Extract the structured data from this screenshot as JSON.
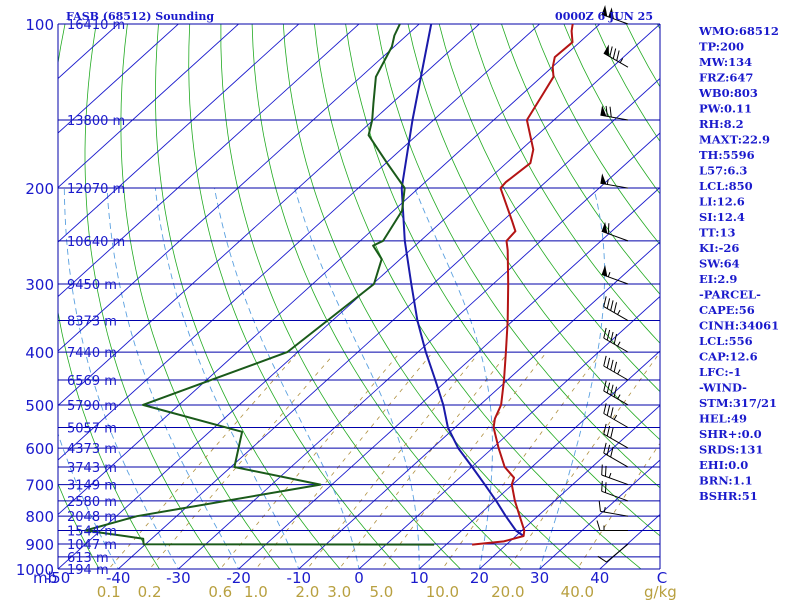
{
  "header": {
    "station_title": "FASB (68512) Sounding",
    "valid_time": "0000Z  6 JUN 25"
  },
  "indices": [
    "WMO:68512",
    "TP:200",
    "MW:134",
    "FRZ:647",
    "WB0:803",
    "PW:0.11",
    "RH:8.2",
    "MAXT:22.9",
    "TH:5596",
    "L57:6.3",
    "LCL:850",
    "LI:12.6",
    "SI:12.4",
    "TT:13",
    "KI:-26",
    "SW:64",
    "EI:2.9",
    "-PARCEL-",
    "CAPE:56",
    "CINH:34061",
    "LCL:556",
    "CAP:12.6",
    "LFC:-1",
    "-WIND-",
    "STM:317/21",
    "HEL:49",
    "SHR+:0.0",
    "SRDS:131",
    "EHI:0.0",
    "BRN:1.1",
    "BSHR:51"
  ],
  "colors": {
    "isobar": "#0000aa",
    "isotherm": "#1a1acc",
    "dry_adiabat": "#22aa22",
    "moist_adiabat": "#5aa0e0",
    "mixing_ratio": "#b09040",
    "temperature": "#b41414",
    "dewpoint": "#1a5a1a",
    "parcel": "#1a1aaa",
    "wind_barb": "#000000",
    "label": "#1a1acc",
    "mixing_label": "#b8a040"
  },
  "chart_data": {
    "type": "skew-t log-p sounding",
    "pressure_axis": {
      "unit": "mb",
      "range": [
        1000,
        100
      ],
      "scale": "log",
      "ticks": [
        100,
        200,
        300,
        400,
        500,
        600,
        700,
        800,
        900,
        1000
      ]
    },
    "temperature_axis": {
      "unit": "C",
      "range": [
        -50,
        50
      ],
      "ticks": [
        -50,
        -40,
        -30,
        -20,
        -10,
        0,
        10,
        20,
        30,
        40
      ],
      "tick_labels": [
        "-50",
        "-40",
        "-30",
        "-20",
        "-10",
        "0",
        "10",
        "20",
        "30",
        "40",
        "C"
      ],
      "unit_label_left": "mb"
    },
    "height_labels": [
      {
        "p": 100,
        "label": "16410 m"
      },
      {
        "p": 150,
        "label": "13800 m"
      },
      {
        "p": 200,
        "label": "12070 m"
      },
      {
        "p": 250,
        "label": "10640 m"
      },
      {
        "p": 300,
        "label": "9450 m"
      },
      {
        "p": 350,
        "label": "8373 m"
      },
      {
        "p": 400,
        "label": "7440 m"
      },
      {
        "p": 450,
        "label": "6569 m"
      },
      {
        "p": 500,
        "label": "5790 m"
      },
      {
        "p": 550,
        "label": "5057 m"
      },
      {
        "p": 600,
        "label": "4373 m"
      },
      {
        "p": 650,
        "label": "3743 m"
      },
      {
        "p": 700,
        "label": "3149 m"
      },
      {
        "p": 750,
        "label": "2580 m"
      },
      {
        "p": 800,
        "label": "2048 m"
      },
      {
        "p": 850,
        "label": "1544 m"
      },
      {
        "p": 900,
        "label": "1047 m"
      },
      {
        "p": 950,
        "label": "613 m"
      },
      {
        "p": 1000,
        "label": "194 m"
      }
    ],
    "mixing_ratio_labels": [
      {
        "w": 0.1,
        "label": "0.1"
      },
      {
        "w": 0.2,
        "label": "0.2"
      },
      {
        "w": 0.6,
        "label": "0.6"
      },
      {
        "w": 1.0,
        "label": "1.0"
      },
      {
        "w": 2.0,
        "label": "2.0"
      },
      {
        "w": 3.0,
        "label": "3.0"
      },
      {
        "w": 5.0,
        "label": "5.0"
      },
      {
        "w": 10.0,
        "label": "10.0"
      },
      {
        "w": 20.0,
        "label": "20.0"
      },
      {
        "w": 40.0,
        "label": "40.0"
      }
    ],
    "mixing_ratio_unit": "g/kg",
    "temperature": [
      {
        "p": 902,
        "t": 14.3
      },
      {
        "p": 890,
        "t": 19.0
      },
      {
        "p": 870,
        "t": 21.3
      },
      {
        "p": 850,
        "t": 20.4
      },
      {
        "p": 800,
        "t": 17.0
      },
      {
        "p": 750,
        "t": 13.4
      },
      {
        "p": 700,
        "t": 9.9
      },
      {
        "p": 680,
        "t": 9.0
      },
      {
        "p": 650,
        "t": 5.5
      },
      {
        "p": 600,
        "t": 1.0
      },
      {
        "p": 550,
        "t": -3.6
      },
      {
        "p": 530,
        "t": -5.0
      },
      {
        "p": 500,
        "t": -6.5
      },
      {
        "p": 450,
        "t": -10.6
      },
      {
        "p": 400,
        "t": -15.4
      },
      {
        "p": 350,
        "t": -20.9
      },
      {
        "p": 300,
        "t": -27.5
      },
      {
        "p": 260,
        "t": -33.8
      },
      {
        "p": 250,
        "t": -35.7
      },
      {
        "p": 240,
        "t": -36.0
      },
      {
        "p": 230,
        "t": -38.4
      },
      {
        "p": 200,
        "t": -46.4
      },
      {
        "p": 195,
        "t": -46.6
      },
      {
        "p": 180,
        "t": -46.0
      },
      {
        "p": 170,
        "t": -48.0
      },
      {
        "p": 150,
        "t": -54.5
      },
      {
        "p": 135,
        "t": -56.5
      },
      {
        "p": 125,
        "t": -58.0
      },
      {
        "p": 120,
        "t": -59.9
      },
      {
        "p": 115,
        "t": -61.4
      },
      {
        "p": 108,
        "t": -61.2
      },
      {
        "p": 103,
        "t": -63.4
      },
      {
        "p": 100,
        "t": -64.5
      }
    ],
    "dewpoint": [
      {
        "p": 902,
        "t": 8.0
      },
      {
        "p": 901,
        "t": -40.3
      },
      {
        "p": 880,
        "t": -41.4
      },
      {
        "p": 850,
        "t": -52.5
      },
      {
        "p": 800,
        "t": -46.6
      },
      {
        "p": 700,
        "t": -21.9
      },
      {
        "p": 650,
        "t": -39.4
      },
      {
        "p": 560,
        "t": -44.6
      },
      {
        "p": 500,
        "t": -66.0
      },
      {
        "p": 400,
        "t": -51.7
      },
      {
        "p": 300,
        "t": -49.8
      },
      {
        "p": 270,
        "t": -53.1
      },
      {
        "p": 255,
        "t": -57.0
      },
      {
        "p": 250,
        "t": -56.2
      },
      {
        "p": 220,
        "t": -58.6
      },
      {
        "p": 200,
        "t": -62.3
      },
      {
        "p": 180,
        "t": -69.8
      },
      {
        "p": 160,
        "t": -78.0
      },
      {
        "p": 150,
        "t": -80.2
      },
      {
        "p": 140,
        "t": -83.0
      },
      {
        "p": 125,
        "t": -87.5
      },
      {
        "p": 110,
        "t": -90.4
      },
      {
        "p": 105,
        "t": -92.0
      },
      {
        "p": 100,
        "t": -93.2
      }
    ],
    "parcel": [
      {
        "p": 870,
        "t": 21.3
      },
      {
        "p": 850,
        "t": 19.0
      },
      {
        "p": 800,
        "t": 14.7
      },
      {
        "p": 750,
        "t": 10.3
      },
      {
        "p": 700,
        "t": 5.4
      },
      {
        "p": 650,
        "t": 0.1
      },
      {
        "p": 600,
        "t": -5.7
      },
      {
        "p": 550,
        "t": -11.2
      },
      {
        "p": 500,
        "t": -16.1
      },
      {
        "p": 450,
        "t": -22.0
      },
      {
        "p": 400,
        "t": -28.7
      },
      {
        "p": 350,
        "t": -35.9
      },
      {
        "p": 300,
        "t": -43.6
      },
      {
        "p": 250,
        "t": -52.6
      },
      {
        "p": 200,
        "t": -62.8
      },
      {
        "p": 150,
        "t": -73.5
      },
      {
        "p": 100,
        "t": -88.0
      }
    ],
    "isobars": [
      100,
      150,
      200,
      250,
      300,
      350,
      400,
      450,
      500,
      550,
      600,
      650,
      700,
      750,
      800,
      850,
      900,
      950,
      1000
    ],
    "isotherms": [
      -200,
      -190,
      -180,
      -170,
      -160,
      -150,
      -140,
      -130,
      -120,
      -110,
      -100,
      -90,
      -80,
      -70,
      -60,
      -50,
      -40,
      -30,
      -20,
      -10,
      0,
      10,
      20,
      30,
      40,
      50
    ],
    "dry_adiabats_theta_K": [
      230,
      240,
      250,
      260,
      270,
      280,
      290,
      300,
      310,
      320,
      330,
      340,
      350,
      360,
      370,
      380,
      390,
      400,
      410,
      420,
      430,
      440,
      450,
      460,
      470,
      480,
      490,
      500,
      510,
      520,
      530,
      540,
      550,
      560,
      570,
      580,
      590,
      600
    ],
    "moist_adiabats_start_C": [
      -40,
      -30,
      -20,
      -10,
      0,
      10,
      20,
      30
    ],
    "mixing_ratios_gkg": [
      0.1,
      0.2,
      0.6,
      1.0,
      2.0,
      3.0,
      5.0,
      10.0,
      20.0,
      40.0
    ],
    "wind_barbs": [
      {
        "p": 900,
        "dir": 230,
        "kt": 10
      },
      {
        "p": 850,
        "dir": 270,
        "kt": 15
      },
      {
        "p": 800,
        "dir": 280,
        "kt": 15
      },
      {
        "p": 750,
        "dir": 290,
        "kt": 20
      },
      {
        "p": 700,
        "dir": 290,
        "kt": 25
      },
      {
        "p": 650,
        "dir": 300,
        "kt": 30
      },
      {
        "p": 600,
        "dir": 300,
        "kt": 30
      },
      {
        "p": 550,
        "dir": 300,
        "kt": 35
      },
      {
        "p": 500,
        "dir": 300,
        "kt": 45
      },
      {
        "p": 450,
        "dir": 300,
        "kt": 45
      },
      {
        "p": 400,
        "dir": 300,
        "kt": 45
      },
      {
        "p": 350,
        "dir": 300,
        "kt": 45
      },
      {
        "p": 300,
        "dir": 290,
        "kt": 55
      },
      {
        "p": 250,
        "dir": 290,
        "kt": 60
      },
      {
        "p": 200,
        "dir": 280,
        "kt": 55
      },
      {
        "p": 150,
        "dir": 280,
        "kt": 70
      },
      {
        "p": 120,
        "dir": 300,
        "kt": 85
      },
      {
        "p": 100,
        "dir": 290,
        "kt": 100
      }
    ],
    "grid": true,
    "legend": "none"
  }
}
